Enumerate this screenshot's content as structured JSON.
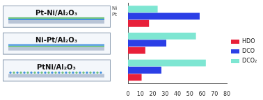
{
  "chart_data": {
    "type": "bar",
    "orientation": "horizontal",
    "categories": [
      "Pt-Ni/Al₂O₃",
      "Ni-Pt/Al₂O₃",
      "PtNi/Al₂O₃"
    ],
    "series": [
      {
        "name": "DCO₂",
        "color": "#7ee6d2",
        "values": [
          24,
          55,
          63
        ]
      },
      {
        "name": "DCO",
        "color": "#2b3fe6",
        "values": [
          58,
          31,
          27
        ]
      },
      {
        "name": "HDO",
        "color": "#e8203a",
        "values": [
          17,
          14,
          11
        ]
      }
    ],
    "xlim": [
      0,
      80
    ],
    "xticks": [
      0,
      10,
      20,
      30,
      40,
      50,
      60,
      70,
      80
    ],
    "grid": false,
    "legend": "right",
    "tick_labels": "x",
    "annotations": [
      "Ni",
      "Pt"
    ]
  }
}
